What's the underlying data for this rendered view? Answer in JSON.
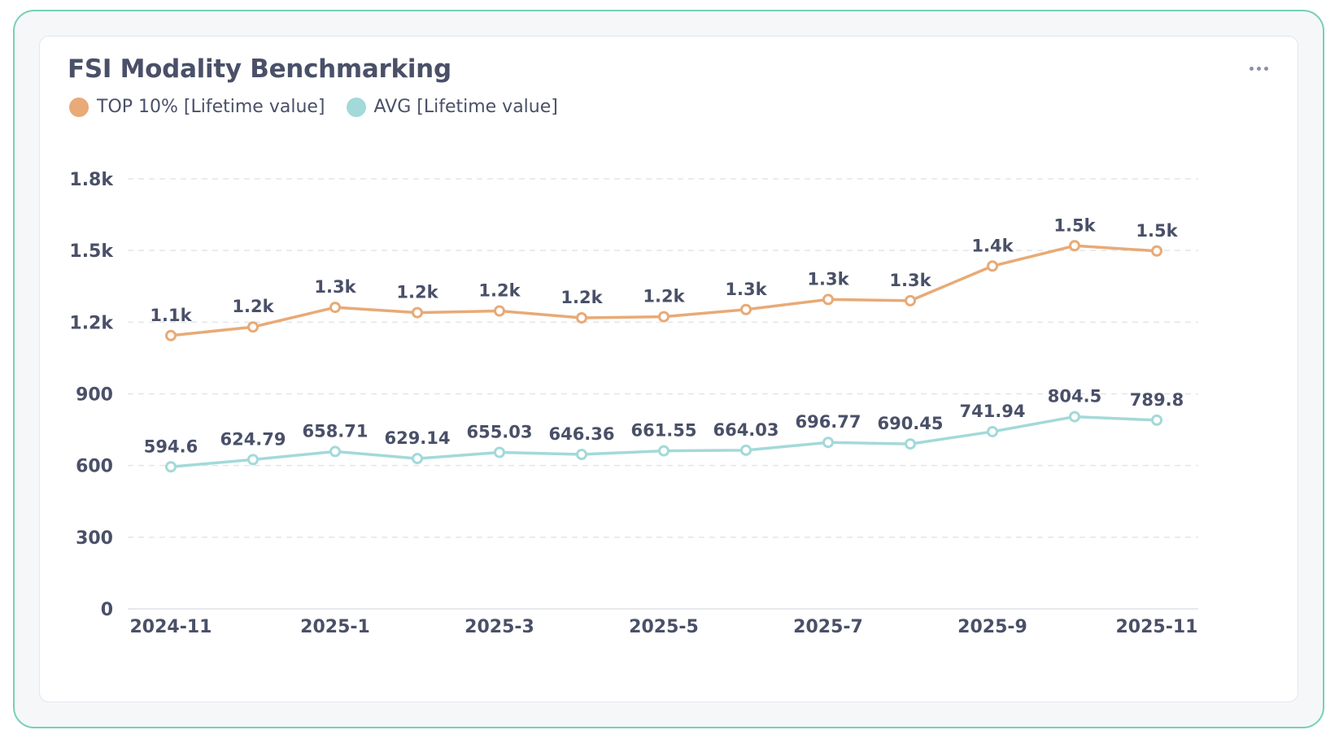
{
  "card": {
    "title": "FSI Modality Benchmarking",
    "menu_icon": "more-horizontal-icon"
  },
  "legend": [
    {
      "label": "TOP 10% [Lifetime value]",
      "color": "#e8aa76"
    },
    {
      "label": "AVG [Lifetime value]",
      "color": "#a3d9d9"
    }
  ],
  "chart_data": {
    "type": "line",
    "title": "FSI Modality Benchmarking",
    "xlabel": "",
    "ylabel": "",
    "ylim": [
      0,
      1800
    ],
    "grid": true,
    "legend_position": "top-left",
    "x": [
      "2024-11",
      "2024-12",
      "2025-1",
      "2025-2",
      "2025-3",
      "2025-4",
      "2025-5",
      "2025-6",
      "2025-7",
      "2025-8",
      "2025-9",
      "2025-10",
      "2025-11"
    ],
    "x_tick_labels": [
      "2024-11",
      "2025-1",
      "2025-3",
      "2025-5",
      "2025-7",
      "2025-9",
      "2025-11"
    ],
    "y_ticks": [
      0,
      300,
      600,
      900,
      1200,
      1500,
      1800
    ],
    "y_tick_labels": [
      "0",
      "300",
      "600",
      "900",
      "1.2k",
      "1.5k",
      "1.8k"
    ],
    "series": [
      {
        "name": "TOP 10% [Lifetime value]",
        "color": "#e8aa76",
        "values": [
          1144,
          1180,
          1262,
          1240,
          1247,
          1218,
          1223,
          1253,
          1295,
          1290,
          1435,
          1520,
          1498
        ],
        "data_labels": [
          "1.1k",
          "1.2k",
          "1.3k",
          "1.2k",
          "1.2k",
          "1.2k",
          "1.2k",
          "1.3k",
          "1.3k",
          "1.3k",
          "1.4k",
          "1.5k",
          "1.5k"
        ]
      },
      {
        "name": "AVG [Lifetime value]",
        "color": "#a3d9d9",
        "values": [
          594.6,
          624.79,
          658.71,
          629.14,
          655.03,
          646.36,
          661.55,
          664.03,
          696.77,
          690.45,
          741.94,
          804.5,
          789.8
        ],
        "data_labels": [
          "594.6",
          "624.79",
          "658.71",
          "629.14",
          "655.03",
          "646.36",
          "661.55",
          "664.03",
          "696.77",
          "690.45",
          "741.94",
          "804.5",
          "789.8"
        ]
      }
    ]
  }
}
